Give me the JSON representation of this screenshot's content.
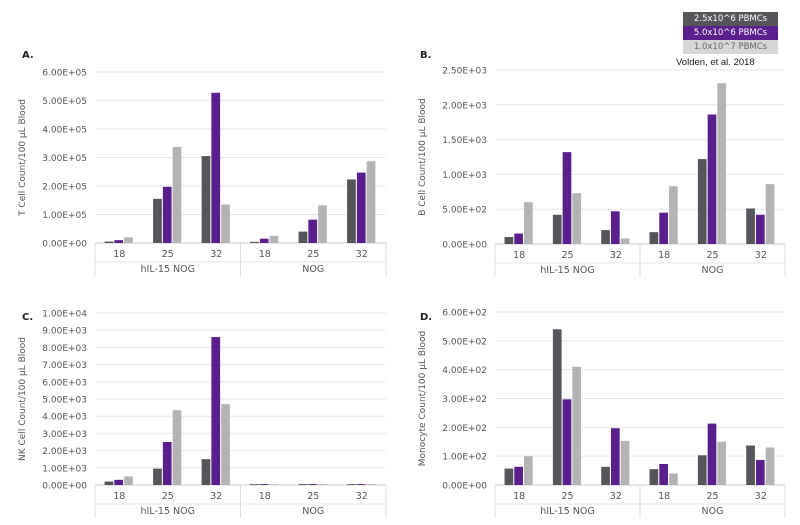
{
  "colors": {
    "series": [
      "#55565a",
      "#5a1f8c",
      "#b4b4b6"
    ],
    "grid": "#e6e6e6",
    "text": "#555555"
  },
  "legend": [
    {
      "label": "2.5x10^6 PBMCs",
      "color": "#55565a",
      "text_color": "#ffffff"
    },
    {
      "label": "5.0x10^6 PBMCs",
      "color": "#5a1f8c",
      "text_color": "#ffffff"
    },
    {
      "label": "1.0x10^7 PBMCs",
      "color": "#d6d6d8",
      "text_color": "#666666"
    }
  ],
  "citation": "Volden, et al. 2018",
  "chart_data": [
    {
      "type": "bar",
      "panel": "A.",
      "ylabel": "T Cell Count/100 µL Blood",
      "ylim": [
        0,
        600000
      ],
      "yticks": [
        "0.00E+00",
        "1.00E+05",
        "2.00E+05",
        "3.00E+05",
        "4.00E+05",
        "5.00E+05",
        "6.00E+05"
      ],
      "groups": [
        "hIL-15 NOG",
        "NOG"
      ],
      "categories": [
        "18",
        "25",
        "32",
        "18",
        "25",
        "32"
      ],
      "grid": true,
      "series": [
        {
          "name": "2.5x10^6 PBMCs",
          "values": [
            5000,
            155000,
            305000,
            4000,
            40000,
            223000
          ]
        },
        {
          "name": "5.0x10^6 PBMCs",
          "values": [
            10000,
            197000,
            527000,
            15000,
            82000,
            247000
          ]
        },
        {
          "name": "1.0x10^7 PBMCs",
          "values": [
            20000,
            337000,
            135000,
            25000,
            132000,
            287000
          ]
        }
      ]
    },
    {
      "type": "bar",
      "panel": "B.",
      "ylabel": "B Cell Count/100 µL Blood",
      "ylim": [
        0,
        2500
      ],
      "yticks": [
        "0.00E+00",
        "5.00E+02",
        "1.00E+03",
        "1.50E+03",
        "2.00E+03",
        "2.50E+03"
      ],
      "groups": [
        "hIL-15 NOG",
        "NOG"
      ],
      "categories": [
        "18",
        "25",
        "32",
        "18",
        "25",
        "32"
      ],
      "grid": true,
      "series": [
        {
          "name": "2.5x10^6 PBMCs",
          "values": [
            100,
            420,
            200,
            170,
            1220,
            510
          ]
        },
        {
          "name": "5.0x10^6 PBMCs",
          "values": [
            150,
            1320,
            470,
            450,
            1860,
            420
          ]
        },
        {
          "name": "1.0x10^7 PBMCs",
          "values": [
            600,
            730,
            80,
            830,
            2310,
            860
          ]
        }
      ]
    },
    {
      "type": "bar",
      "panel": "C.",
      "ylabel": "NK Cell Count/100 µL Blood",
      "ylim": [
        0,
        10000
      ],
      "yticks": [
        "0.00E+00",
        "1.00E+03",
        "2.00E+03",
        "3.00E+03",
        "4.00E+03",
        "5.00E+03",
        "6.00E+03",
        "7.00E+03",
        "8.00E+03",
        "9.00E+03",
        "1.00E+04"
      ],
      "groups": [
        "hIL-15 NOG",
        "NOG"
      ],
      "categories": [
        "18",
        "25",
        "32",
        "18",
        "25",
        "32"
      ],
      "grid": true,
      "series": [
        {
          "name": "2.5x10^6 PBMCs",
          "values": [
            200,
            950,
            1500,
            50,
            50,
            50
          ]
        },
        {
          "name": "5.0x10^6 PBMCs",
          "values": [
            300,
            2500,
            8600,
            50,
            50,
            50
          ]
        },
        {
          "name": "1.0x10^7 PBMCs",
          "values": [
            500,
            4350,
            4700,
            50,
            50,
            50
          ]
        }
      ]
    },
    {
      "type": "bar",
      "panel": "D.",
      "ylabel": "Monocyte Count/100 µL Blood",
      "ylim": [
        0,
        600
      ],
      "yticks": [
        "0.00E+00",
        "1.00E+02",
        "2.00E+02",
        "3.00E+02",
        "4.00E+02",
        "5.00E+02",
        "6.00E+02"
      ],
      "groups": [
        "hIL-15 NOG",
        "NOG"
      ],
      "categories": [
        "18",
        "25",
        "32",
        "18",
        "25",
        "32"
      ],
      "grid": true,
      "series": [
        {
          "name": "2.5x10^6 PBMCs",
          "values": [
            57,
            540,
            63,
            55,
            103,
            137
          ]
        },
        {
          "name": "5.0x10^6 PBMCs",
          "values": [
            63,
            297,
            197,
            73,
            213,
            87
          ]
        },
        {
          "name": "1.0x10^7 PBMCs",
          "values": [
            100,
            410,
            153,
            40,
            150,
            130
          ]
        }
      ]
    }
  ]
}
